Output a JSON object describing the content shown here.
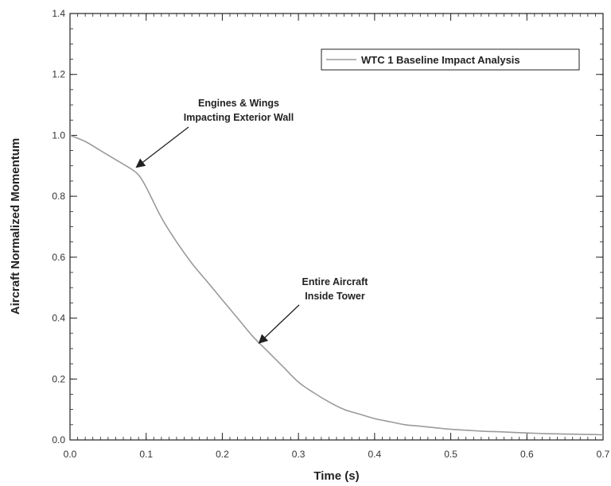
{
  "chart_data": {
    "type": "line",
    "title": "",
    "xlabel": "Time  (s)",
    "ylabel": "Aircraft Normalized Momentum",
    "xlim": [
      0.0,
      0.7
    ],
    "ylim": [
      0.0,
      1.4
    ],
    "xticks": [
      "0.0",
      "0.1",
      "0.2",
      "0.3",
      "0.4",
      "0.5",
      "0.6",
      "0.7"
    ],
    "yticks": [
      "0.0",
      "0.2",
      "0.4",
      "0.6",
      "0.8",
      "1.0",
      "1.2",
      "1.4"
    ],
    "grid": false,
    "legend": {
      "position": "top-right",
      "entries": [
        "WTC 1 Baseline Impact Analysis"
      ]
    },
    "series": [
      {
        "name": "WTC 1 Baseline Impact Analysis",
        "color": "#9a9a9a",
        "x": [
          0.0,
          0.02,
          0.04,
          0.06,
          0.08,
          0.09,
          0.1,
          0.12,
          0.14,
          0.16,
          0.18,
          0.2,
          0.22,
          0.24,
          0.26,
          0.28,
          0.3,
          0.32,
          0.34,
          0.36,
          0.38,
          0.4,
          0.42,
          0.44,
          0.46,
          0.48,
          0.5,
          0.52,
          0.54,
          0.56,
          0.58,
          0.6,
          0.62,
          0.64,
          0.66,
          0.68,
          0.7
        ],
        "y": [
          1.0,
          0.98,
          0.95,
          0.92,
          0.89,
          0.87,
          0.83,
          0.73,
          0.65,
          0.58,
          0.52,
          0.46,
          0.4,
          0.34,
          0.29,
          0.24,
          0.19,
          0.155,
          0.125,
          0.1,
          0.085,
          0.07,
          0.06,
          0.05,
          0.045,
          0.04,
          0.035,
          0.032,
          0.029,
          0.027,
          0.025,
          0.023,
          0.021,
          0.02,
          0.019,
          0.018,
          0.017
        ]
      }
    ],
    "annotations": [
      {
        "lines": [
          "Engines & Wings",
          "Impacting Exterior Wall"
        ],
        "point_x": 0.085,
        "point_y": 0.89
      },
      {
        "lines": [
          "Entire Aircraft",
          "Inside Tower"
        ],
        "point_x": 0.245,
        "point_y": 0.31
      }
    ]
  }
}
